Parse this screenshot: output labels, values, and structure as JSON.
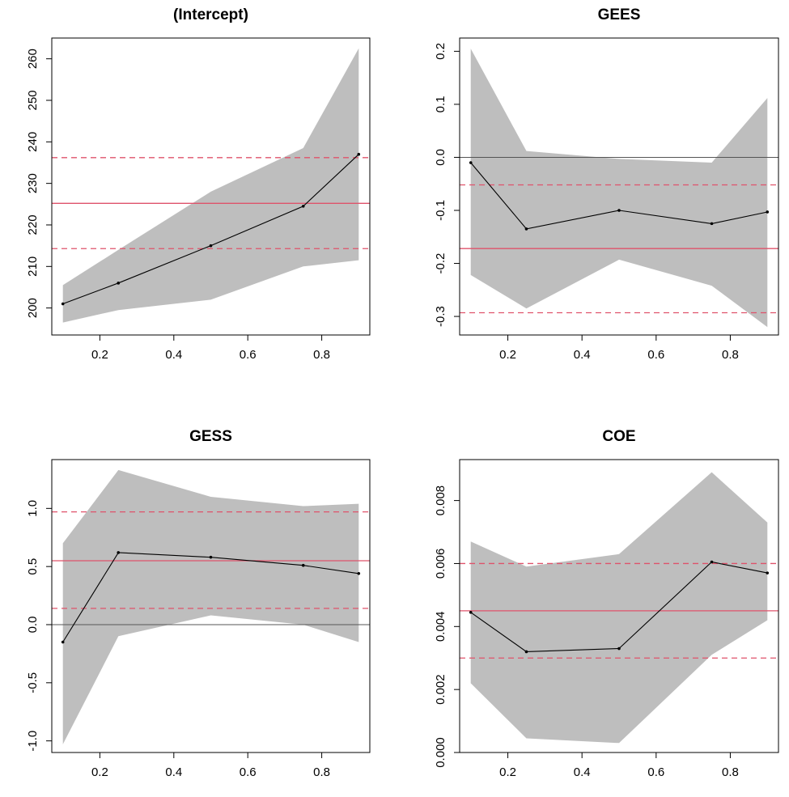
{
  "chart_data": [
    {
      "type": "line",
      "title": "(Intercept)",
      "x": [
        0.1,
        0.25,
        0.5,
        0.75,
        0.9
      ],
      "estimate": [
        201,
        206,
        215,
        224.5,
        237
      ],
      "ci_lower": [
        196.5,
        199.5,
        202,
        210,
        211.5
      ],
      "ci_upper": [
        205.5,
        214,
        228,
        238.5,
        262.5
      ],
      "ols_estimate": 225.2,
      "ols_ci": [
        214.3,
        236.2
      ],
      "zero_line": false,
      "xlim": [
        0.07,
        0.93
      ],
      "ylim": [
        193.5,
        265
      ],
      "xticks": [
        0.2,
        0.4,
        0.6,
        0.8
      ],
      "xtick_labels": [
        "0.2",
        "0.4",
        "0.6",
        "0.8"
      ],
      "yticks": [
        200,
        210,
        220,
        230,
        240,
        250,
        260
      ],
      "ytick_labels": [
        "200",
        "210",
        "220",
        "230",
        "240",
        "250",
        "260"
      ]
    },
    {
      "type": "line",
      "title": "GEES",
      "x": [
        0.1,
        0.25,
        0.5,
        0.75,
        0.9
      ],
      "estimate": [
        -0.01,
        -0.135,
        -0.1,
        -0.125,
        -0.103
      ],
      "ci_lower": [
        -0.222,
        -0.285,
        -0.193,
        -0.242,
        -0.32
      ],
      "ci_upper": [
        0.205,
        0.012,
        -0.003,
        -0.01,
        0.112
      ],
      "ols_estimate": -0.172,
      "ols_ci": [
        -0.293,
        -0.052
      ],
      "zero_line": true,
      "xlim": [
        0.07,
        0.93
      ],
      "ylim": [
        -0.335,
        0.225
      ],
      "xticks": [
        0.2,
        0.4,
        0.6,
        0.8
      ],
      "xtick_labels": [
        "0.2",
        "0.4",
        "0.6",
        "0.8"
      ],
      "yticks": [
        -0.3,
        -0.2,
        -0.1,
        0.0,
        0.1,
        0.2
      ],
      "ytick_labels": [
        "-0.3",
        "-0.2",
        "-0.1",
        "0.0",
        "0.1",
        "0.2"
      ]
    },
    {
      "type": "line",
      "title": "GESS",
      "x": [
        0.1,
        0.25,
        0.5,
        0.75,
        0.9
      ],
      "estimate": [
        -0.15,
        0.62,
        0.58,
        0.51,
        0.44
      ],
      "ci_lower": [
        -1.03,
        -0.1,
        0.08,
        0.0,
        -0.15
      ],
      "ci_upper": [
        0.7,
        1.33,
        1.1,
        1.02,
        1.04
      ],
      "ols_estimate": 0.55,
      "ols_ci": [
        0.14,
        0.97
      ],
      "zero_line": true,
      "xlim": [
        0.07,
        0.93
      ],
      "ylim": [
        -1.1,
        1.42
      ],
      "xticks": [
        0.2,
        0.4,
        0.6,
        0.8
      ],
      "xtick_labels": [
        "0.2",
        "0.4",
        "0.6",
        "0.8"
      ],
      "yticks": [
        -1.0,
        -0.5,
        0.0,
        0.5,
        1.0
      ],
      "ytick_labels": [
        "-1.0",
        "-0.5",
        "0.0",
        "0.5",
        "1.0"
      ]
    },
    {
      "type": "line",
      "title": "COE",
      "x": [
        0.1,
        0.25,
        0.5,
        0.75,
        0.9
      ],
      "estimate": [
        0.00445,
        0.0032,
        0.0033,
        0.00605,
        0.0057
      ],
      "ci_lower": [
        0.0022,
        0.00045,
        0.0003,
        0.0031,
        0.0042
      ],
      "ci_upper": [
        0.0067,
        0.0059,
        0.0063,
        0.0089,
        0.0073
      ],
      "ols_estimate": 0.0045,
      "ols_ci": [
        0.003,
        0.006
      ],
      "zero_line": true,
      "xlim": [
        0.07,
        0.93
      ],
      "ylim": [
        0.0,
        0.0093
      ],
      "xticks": [
        0.2,
        0.4,
        0.6,
        0.8
      ],
      "xtick_labels": [
        "0.2",
        "0.4",
        "0.6",
        "0.8"
      ],
      "yticks": [
        0.0,
        0.002,
        0.004,
        0.006,
        0.008
      ],
      "ytick_labels": [
        "0.000",
        "0.002",
        "0.004",
        "0.006",
        "0.008"
      ]
    }
  ],
  "colors": {
    "band": "#bebebe",
    "estimate_line": "#000000",
    "ols_line": "#df536b",
    "zero_line": "#555555",
    "frame": "#000000"
  }
}
